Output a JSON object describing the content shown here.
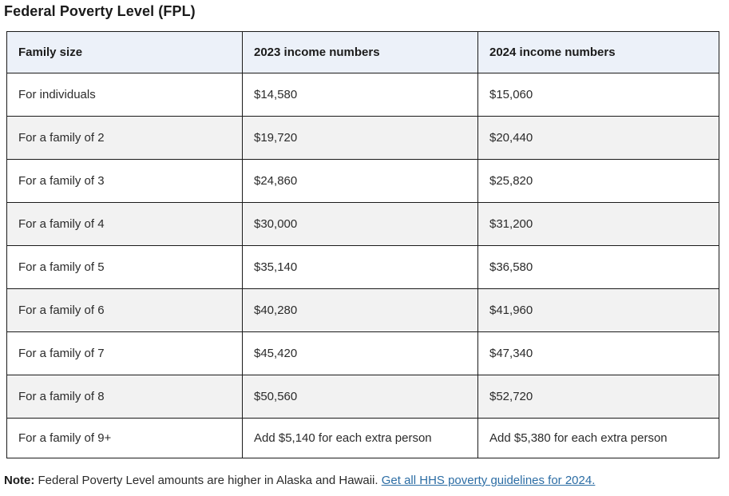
{
  "page": {
    "title": "Federal Poverty Level (FPL)"
  },
  "table": {
    "columns": {
      "family_size": "Family size",
      "income_2023": "2023 income numbers",
      "income_2024": "2024 income numbers"
    },
    "rows": [
      {
        "family_size": "For individuals",
        "income_2023": "$14,580",
        "income_2024": "$15,060"
      },
      {
        "family_size": "For a family of 2",
        "income_2023": "$19,720",
        "income_2024": "$20,440"
      },
      {
        "family_size": "For a family of 3",
        "income_2023": "$24,860",
        "income_2024": "$25,820"
      },
      {
        "family_size": "For a family of 4",
        "income_2023": "$30,000",
        "income_2024": "$31,200"
      },
      {
        "family_size": "For a family of 5",
        "income_2023": "$35,140",
        "income_2024": "$36,580"
      },
      {
        "family_size": "For a family of 6",
        "income_2023": "$40,280",
        "income_2024": "$41,960"
      },
      {
        "family_size": "For a family of 7",
        "income_2023": "$45,420",
        "income_2024": "$47,340"
      },
      {
        "family_size": "For a family of 8",
        "income_2023": "$50,560",
        "income_2024": "$52,720"
      },
      {
        "family_size": "For a family of 9+",
        "income_2023": "Add $5,140 for each extra person",
        "income_2024": "Add $5,380 for each extra person"
      }
    ]
  },
  "note": {
    "label": "Note:",
    "text": " Federal Poverty Level amounts are higher in Alaska and Hawaii. ",
    "link_text": "Get all HHS poverty guidelines for 2024."
  },
  "colors": {
    "header_bg": "#ecf1f9",
    "stripe_bg": "#f2f2f2",
    "border": "#1b1b1b",
    "text": "#2b2b2b",
    "link": "#2c6da4"
  }
}
